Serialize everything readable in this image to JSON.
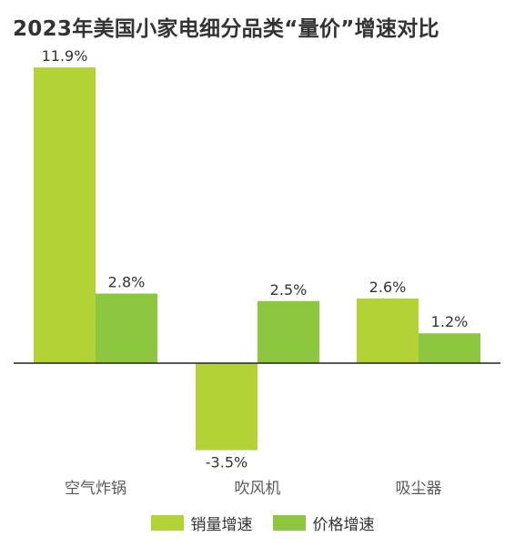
{
  "chart_data": {
    "type": "bar",
    "title": "2023年美国小家电细分品类“量价”增速对比",
    "categories": [
      "空气炸锅",
      "吹风机",
      "吸尘器"
    ],
    "series": [
      {
        "name": "销量增速",
        "values": [
          11.9,
          -3.5,
          2.6
        ],
        "labels": [
          "11.9%",
          "-3.5%",
          "2.6%"
        ],
        "color": "#b2d235"
      },
      {
        "name": "价格增速",
        "values": [
          2.8,
          2.5,
          1.2
        ],
        "labels": [
          "2.8%",
          "2.5%",
          "1.2%"
        ],
        "color": "#8dc63f"
      }
    ],
    "ylim": [
      -3.5,
      11.9
    ],
    "grid": false,
    "legend_position": "bottom"
  }
}
